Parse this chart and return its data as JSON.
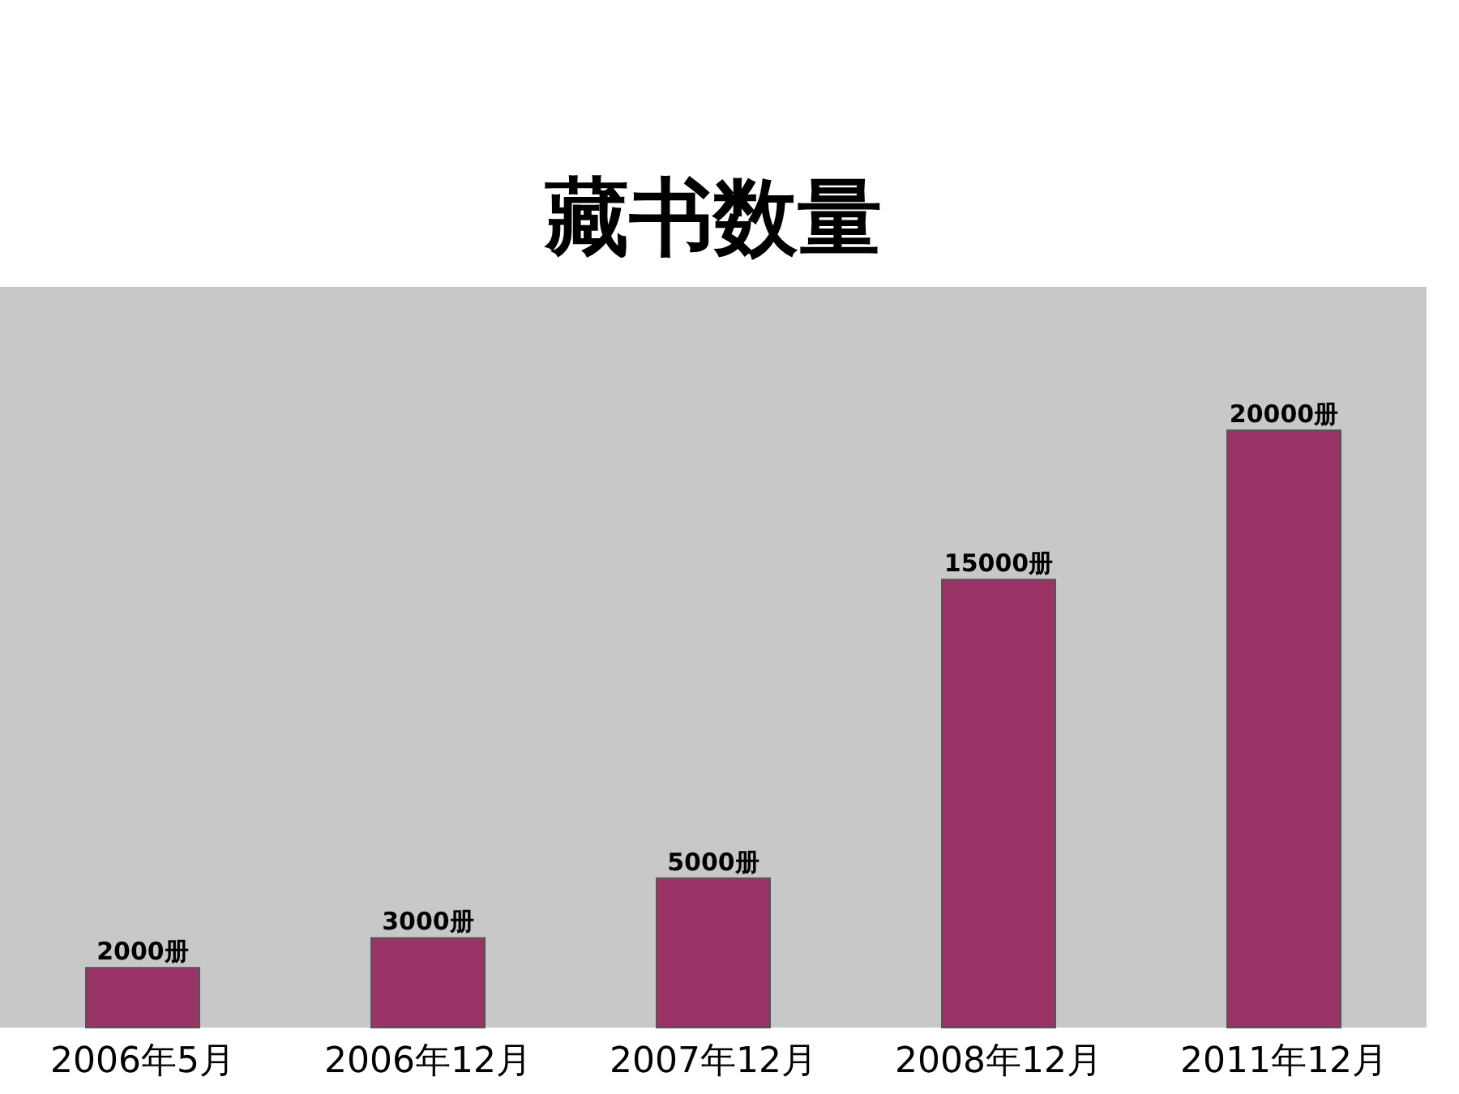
{
  "chart_data": {
    "type": "bar",
    "title": "藏书数量",
    "categories": [
      "2006年5月",
      "2006年12月",
      "2007年12月",
      "2008年12月",
      "2011年12月"
    ],
    "values": [
      2000,
      3000,
      5000,
      15000,
      20000
    ],
    "value_labels": [
      "2000册",
      "3000册",
      "5000册",
      "15000册",
      "20000册"
    ],
    "color": "#993366"
  }
}
